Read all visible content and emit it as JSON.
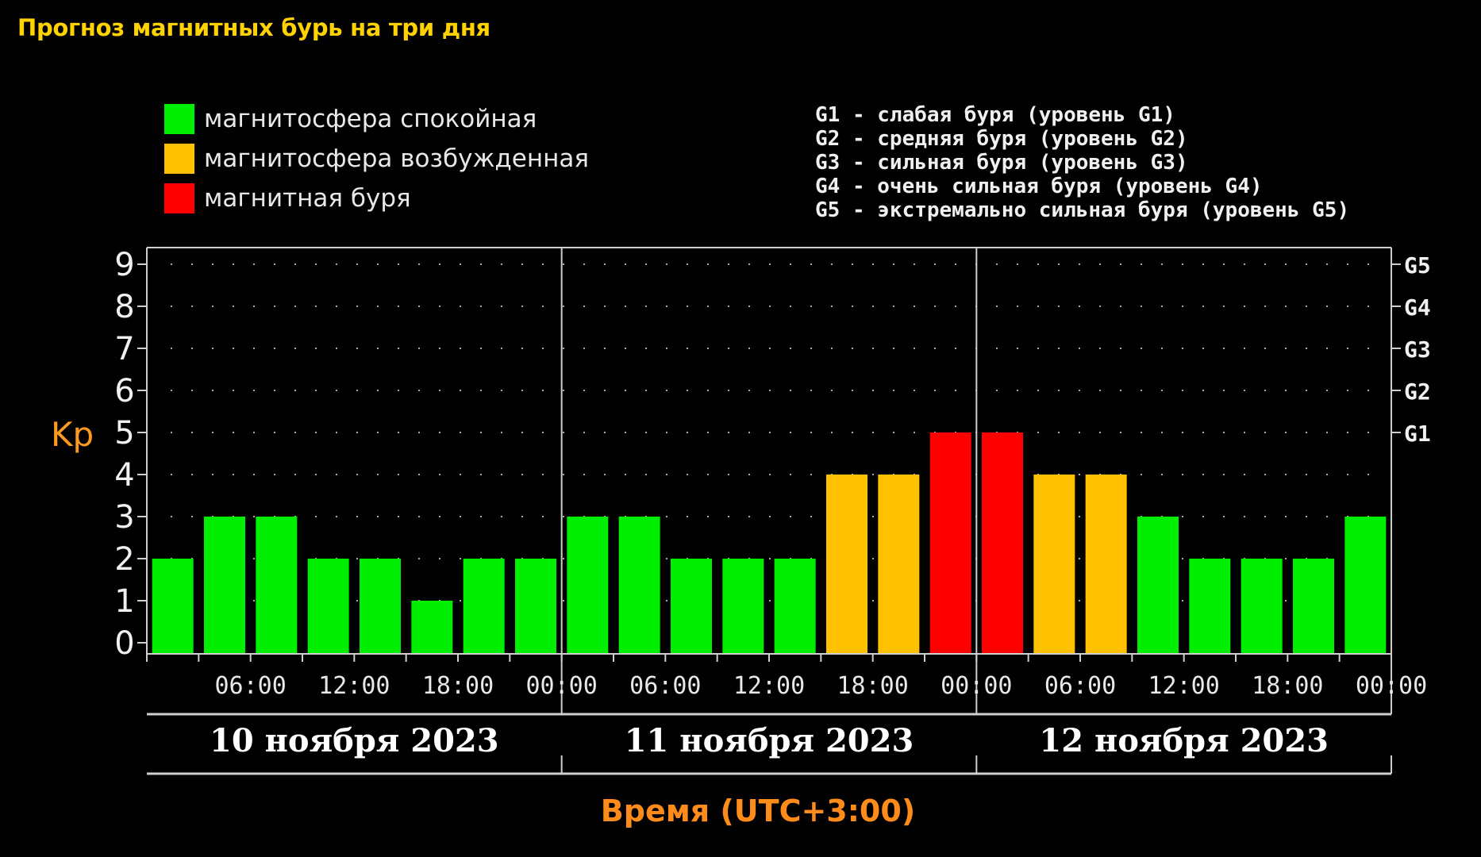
{
  "title": "Прогноз магнитных бурь на три дня",
  "legend": [
    {
      "label": "магнитосфера спокойная",
      "color": "#00ee00"
    },
    {
      "label": "магнитосфера возбужденная",
      "color": "#ffc000"
    },
    {
      "label": "магнитная буря",
      "color": "#ff0000"
    }
  ],
  "storm_levels": [
    "G1 - слабая буря (уровень G1)",
    "G2 - средняя буря (уровень G2)",
    "G3 - сильная буря (уровень G3)",
    "G4 - очень сильная буря (уровень G4)",
    "G5 - экстремально сильная буря (уровень G5)"
  ],
  "chart_data": {
    "type": "bar",
    "ylabel": "Kp",
    "xlabel": "Время (UTC+3:00)",
    "ylim": [
      0,
      9
    ],
    "y_ticks": [
      "0",
      "1",
      "2",
      "3",
      "4",
      "5",
      "6",
      "7",
      "8",
      "9"
    ],
    "right_ticks": [
      {
        "value": 5,
        "label": "G1"
      },
      {
        "value": 6,
        "label": "G2"
      },
      {
        "value": 7,
        "label": "G3"
      },
      {
        "value": 8,
        "label": "G4"
      },
      {
        "value": 9,
        "label": "G5"
      }
    ],
    "x_tick_labels": [
      "06:00",
      "12:00",
      "18:00",
      "00:00",
      "06:00",
      "12:00",
      "18:00",
      "00:00",
      "06:00",
      "12:00",
      "18:00",
      "00:00"
    ],
    "days": [
      "10 ноября 2023",
      "11 ноября 2023",
      "12 ноября 2023"
    ],
    "values": [
      2,
      3,
      3,
      2,
      2,
      1,
      2,
      2,
      3,
      3,
      2,
      2,
      2,
      4,
      4,
      5,
      5,
      4,
      4,
      3,
      2,
      2,
      2,
      3
    ],
    "colors": {
      "quiet": "#00ee00",
      "active": "#ffc000",
      "storm": "#ff0000"
    },
    "grid": "dotted"
  }
}
